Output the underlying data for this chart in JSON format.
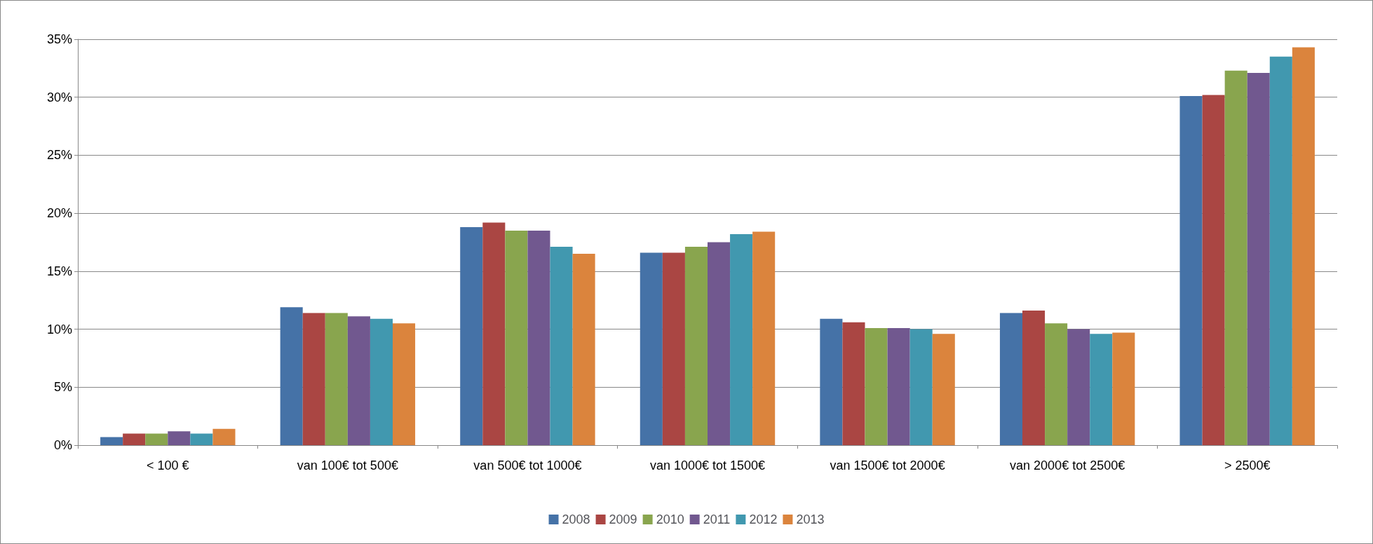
{
  "chart_data": {
    "type": "bar",
    "categories": [
      "< 100 €",
      "van 100€ tot 500€",
      "van 500€ tot 1000€",
      "van 1000€ tot 1500€",
      "van 1500€ tot 2000€",
      "van 2000€ tot 2500€",
      "> 2500€"
    ],
    "series": [
      {
        "name": "2008",
        "color": "#4572a7",
        "values": [
          0.7,
          11.9,
          18.8,
          16.6,
          10.9,
          11.4,
          30.1
        ]
      },
      {
        "name": "2009",
        "color": "#aa4643",
        "values": [
          1.0,
          11.4,
          19.2,
          16.6,
          10.6,
          11.6,
          30.2
        ]
      },
      {
        "name": "2010",
        "color": "#89a54e",
        "values": [
          1.0,
          11.4,
          18.5,
          17.1,
          10.1,
          10.5,
          32.3
        ]
      },
      {
        "name": "2011",
        "color": "#71588f",
        "values": [
          1.2,
          11.1,
          18.5,
          17.5,
          10.1,
          10.0,
          32.1
        ]
      },
      {
        "name": "2012",
        "color": "#4198af",
        "values": [
          1.0,
          10.9,
          17.1,
          18.2,
          10.0,
          9.6,
          33.5
        ]
      },
      {
        "name": "2013",
        "color": "#db843d",
        "values": [
          1.4,
          10.5,
          16.5,
          18.4,
          9.6,
          9.7,
          34.3
        ]
      }
    ],
    "ylim": [
      0,
      35
    ],
    "yticks": [
      {
        "value": 0,
        "label": "0%"
      },
      {
        "value": 5,
        "label": "5%"
      },
      {
        "value": 10,
        "label": "10%"
      },
      {
        "value": 15,
        "label": "15%"
      },
      {
        "value": 20,
        "label": "20%"
      },
      {
        "value": 25,
        "label": "25%"
      },
      {
        "value": 30,
        "label": "30%"
      },
      {
        "value": 35,
        "label": "35%"
      }
    ],
    "grid": "y",
    "legend": "bottom"
  }
}
